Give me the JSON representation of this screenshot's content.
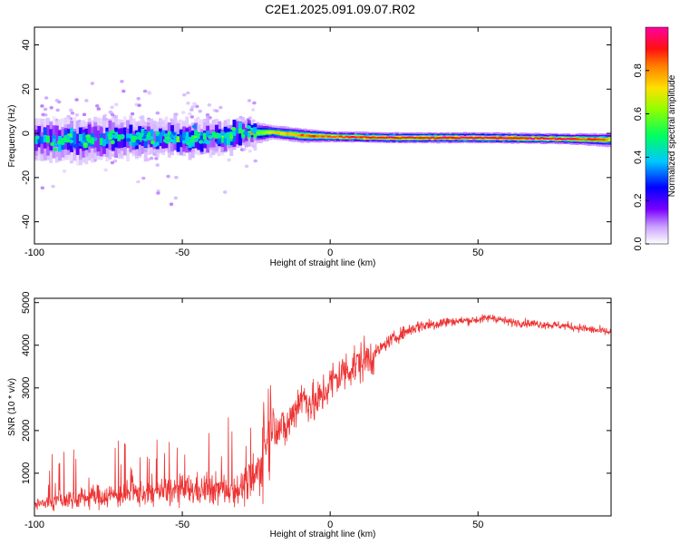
{
  "title": "C2E1.2025.091.09.07.R02",
  "colors": {
    "snr_line": "#ee3333",
    "frame": "#000000"
  },
  "chart_data": [
    {
      "type": "heatmap",
      "title": "C2E1.2025.091.09.07.R02",
      "xlabel": "Height of straight line (km)",
      "ylabel": "Frequency (Hz)",
      "xlim": [
        -100,
        95
      ],
      "ylim": [
        -50,
        48
      ],
      "xticks": [
        -100,
        -50,
        0,
        50
      ],
      "yticks": [
        -40,
        -20,
        0,
        20,
        40
      ],
      "colorbar": {
        "label": "Normalized spectral amplitude",
        "range": [
          0,
          1
        ],
        "ticks": [
          0.0,
          0.2,
          0.4,
          0.6,
          0.8
        ],
        "tick_labels": [
          "0.0",
          "0.2",
          "0.4",
          "0.6",
          "0.8"
        ],
        "colormap": "rainbow (white-purple-blue-cyan-green-yellow-orange-red-magenta)"
      },
      "ridge": [
        {
          "x": -100,
          "center_hz": -3,
          "width_hz": 6,
          "amplitude": 0.35
        },
        {
          "x": -80,
          "center_hz": -3,
          "width_hz": 6,
          "amplitude": 0.38
        },
        {
          "x": -60,
          "center_hz": -2,
          "width_hz": 5,
          "amplitude": 0.4
        },
        {
          "x": -40,
          "center_hz": -2,
          "width_hz": 5,
          "amplitude": 0.45
        },
        {
          "x": -30,
          "center_hz": 0,
          "width_hz": 4,
          "amplitude": 0.5
        },
        {
          "x": -20,
          "center_hz": 0.5,
          "width_hz": 2,
          "amplitude": 0.7
        },
        {
          "x": -10,
          "center_hz": -1,
          "width_hz": 2,
          "amplitude": 0.85
        },
        {
          "x": 0,
          "center_hz": -1.5,
          "width_hz": 1.5,
          "amplitude": 0.9
        },
        {
          "x": 20,
          "center_hz": -2,
          "width_hz": 1.5,
          "amplitude": 0.95
        },
        {
          "x": 50,
          "center_hz": -2,
          "width_hz": 1.5,
          "amplitude": 1.0
        },
        {
          "x": 80,
          "center_hz": -2.5,
          "width_hz": 1.5,
          "amplitude": 0.95
        },
        {
          "x": 95,
          "center_hz": -3,
          "width_hz": 2,
          "amplitude": 0.8
        }
      ]
    },
    {
      "type": "line",
      "xlabel": "Height of straight line (km)",
      "ylabel": "SNR (10 * v/v)",
      "xlim": [
        -100,
        95
      ],
      "ylim": [
        0,
        5100
      ],
      "xticks": [
        -100,
        -50,
        0,
        50
      ],
      "yticks": [
        1000,
        2000,
        3000,
        4000,
        5000
      ],
      "series": [
        {
          "x": [
            -100,
            -90,
            -80,
            -70,
            -60,
            -50,
            -40,
            -30,
            -25,
            -20,
            -15,
            -10,
            -5,
            0,
            5,
            10,
            15,
            20,
            25,
            30,
            40,
            50,
            55,
            60,
            70,
            80,
            90,
            95
          ],
          "values": [
            250,
            380,
            450,
            500,
            550,
            600,
            620,
            650,
            900,
            2200,
            2000,
            2800,
            2600,
            3100,
            3400,
            3600,
            3800,
            4100,
            4300,
            4450,
            4550,
            4600,
            4650,
            4550,
            4500,
            4450,
            4350,
            4300
          ]
        }
      ]
    }
  ]
}
